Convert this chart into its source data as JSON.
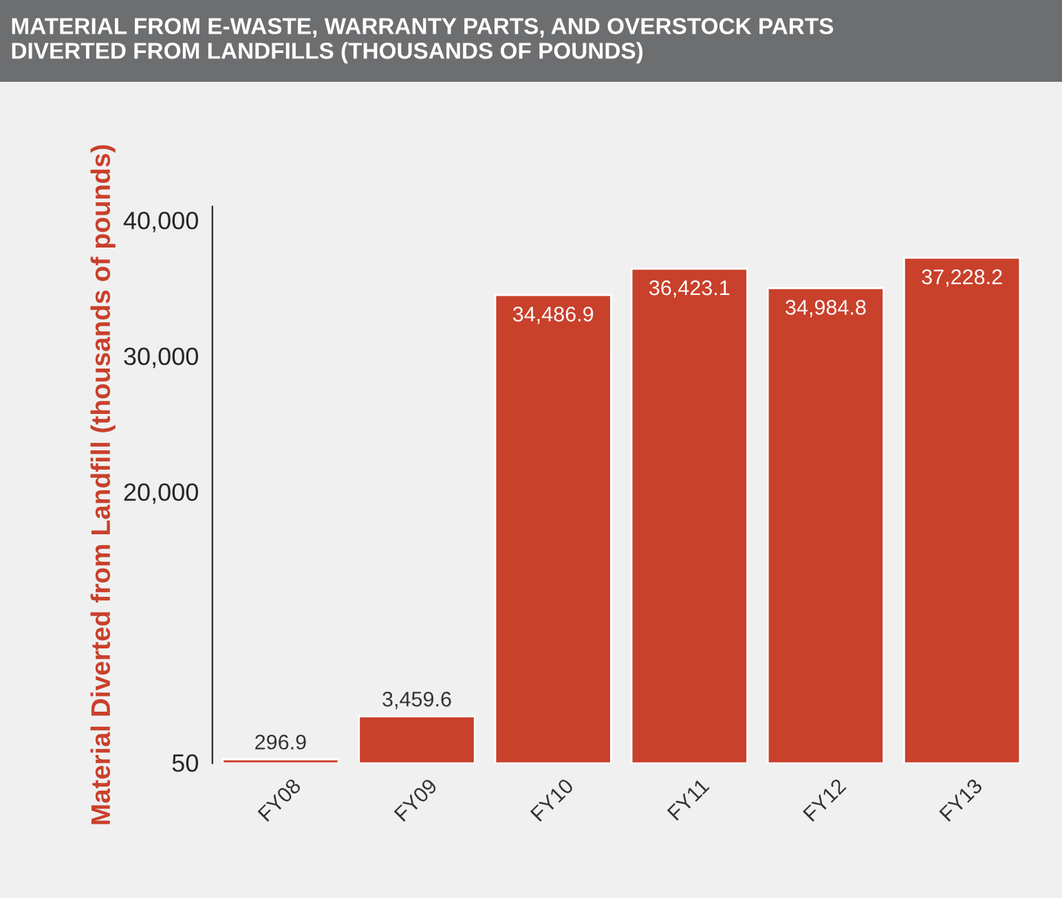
{
  "chart_data": {
    "type": "bar",
    "title": "MATERIAL FROM E-WASTE, WARRANTY PARTS, AND OVERSTOCK PARTS\nDIVERTED FROM LANDFILLS (THOUSANDS OF POUNDS)",
    "ylabel": "Material Diverted from Landfill (thousands of pounds)",
    "categories": [
      "FY08",
      "FY09",
      "FY10",
      "FY11",
      "FY12",
      "FY13"
    ],
    "values": [
      296.9,
      3459.6,
      34486.9,
      36423.1,
      34984.8,
      37228.2
    ],
    "value_labels": [
      "296.9",
      "3,459.6",
      "34,486.9",
      "36,423.1",
      "34,984.8",
      "37,228.2"
    ],
    "color": "#c9402b",
    "ylim": [
      0,
      41000
    ],
    "yticks": [
      50,
      {
        "value": 20000,
        "label": "20,000"
      },
      {
        "value": 30000,
        "label": "30,000"
      },
      {
        "value": 40000,
        "label": "40,000"
      }
    ],
    "grid": false
  }
}
